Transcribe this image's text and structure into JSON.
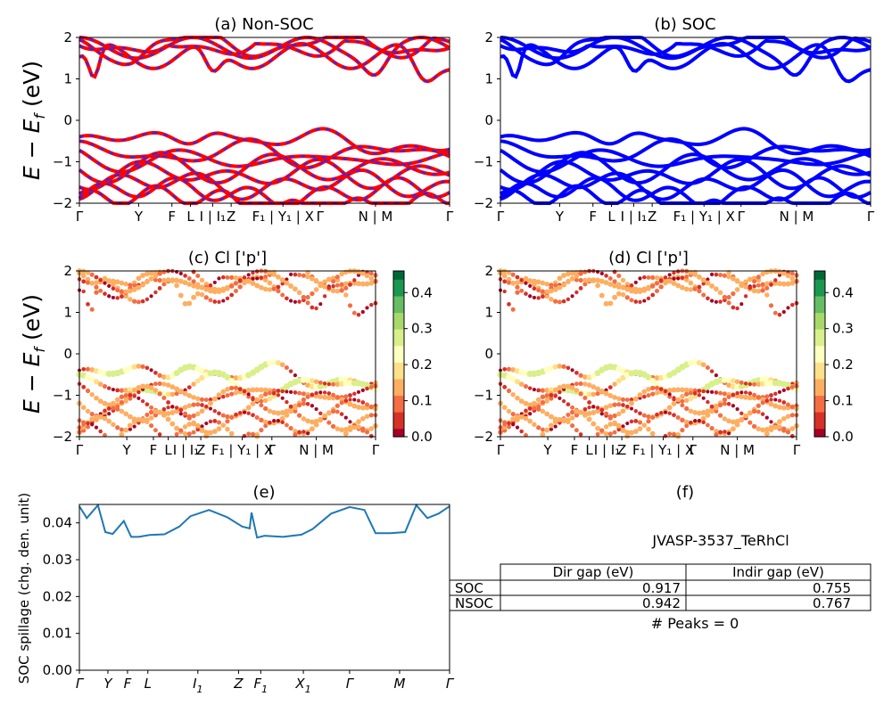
{
  "colors": {
    "nonsoc_line": "#ff0000",
    "nonsoc_dash": "#2a2aff",
    "soc_line": "#0000ff",
    "spillage_line": "#1f77b4",
    "colormap": [
      "#a50026",
      "#d73027",
      "#f46d43",
      "#fdae61",
      "#fee08b",
      "#ffffbf",
      "#d9ef8b",
      "#a6d96a",
      "#66bd63",
      "#1a9850",
      "#006837"
    ]
  },
  "chart_data": [
    {
      "id": "a",
      "type": "line",
      "title": "(a) Non-SOC",
      "ylabel_main": "E − E",
      "ylabel_sub": "f",
      "ylabel_unit": " (eV)",
      "ylim": [
        -2,
        2
      ],
      "yticks": [
        "2",
        "1",
        "0",
        "−1",
        "−2"
      ],
      "xticks": [
        "Γ",
        "Y",
        "F",
        "L",
        "I | I₁",
        "Z",
        "F₁ | Y₁ | X",
        "Γ",
        "N | M",
        "Γ"
      ],
      "kpath_positions": [
        0,
        0.16,
        0.25,
        0.3,
        0.36,
        0.41,
        0.55,
        0.65,
        0.8,
        1.0
      ],
      "band_sets": {
        "conduction": [
          {
            "base": 1.78,
            "amp": 0.95,
            "shape": "upper"
          },
          {
            "base": 1.92,
            "amp": 0.55,
            "shape": "upper2"
          },
          {
            "base": 1.98,
            "amp": 0.35,
            "shape": "upper3"
          }
        ],
        "valence": [
          {
            "base": -0.55,
            "amp": 0.5,
            "shape": "v1"
          },
          {
            "base": -0.85,
            "amp": 0.3,
            "shape": "v2"
          },
          {
            "base": -1.1,
            "amp": 0.3,
            "shape": "v3"
          },
          {
            "base": -1.3,
            "amp": 0.3,
            "shape": "v4"
          },
          {
            "base": -1.55,
            "amp": 0.35,
            "shape": "v5"
          },
          {
            "base": -1.85,
            "amp": 0.35,
            "shape": "v6"
          }
        ]
      }
    },
    {
      "id": "b",
      "type": "line",
      "title": "(b) SOC",
      "ylim": [
        -2,
        2
      ],
      "yticks": [
        "2",
        "1",
        "0",
        "−1",
        "−2"
      ],
      "xticks": [
        "Γ",
        "Y",
        "F",
        "L",
        "I | I₁",
        "Z",
        "F₁ | Y₁ | X",
        "Γ",
        "N | M",
        "Γ"
      ]
    },
    {
      "id": "c",
      "type": "scatter",
      "title": "(c)  Cl ['p']",
      "ylabel_main": "E − E",
      "ylabel_sub": "f",
      "ylabel_unit": " (eV)",
      "ylim": [
        -2,
        2
      ],
      "yticks": [
        "2",
        "1",
        "0",
        "−1",
        "−2"
      ],
      "xticks": [
        "Γ",
        "Y",
        "F",
        "L",
        "I | I₁",
        "Z",
        "F₁ | Y₁ | X",
        "Γ",
        "N | M",
        "Γ"
      ],
      "colorbar_ticks": [
        "0.4",
        "0.3",
        "0.2",
        "0.1",
        "0.0"
      ],
      "colorbar_range": [
        0,
        0.46
      ]
    },
    {
      "id": "d",
      "type": "scatter",
      "title": "(d) Cl ['p']",
      "ylim": [
        -2,
        2
      ],
      "yticks": [
        "2",
        "1",
        "0",
        "−1",
        "−2"
      ],
      "xticks": [
        "Γ",
        "Y",
        "F",
        "L",
        "I | I₁",
        "Z",
        "F₁ | Y₁ | X",
        "Γ",
        "N | M",
        "Γ"
      ],
      "colorbar_ticks": [
        "0.4",
        "0.3",
        "0.2",
        "0.1",
        "0.0"
      ],
      "colorbar_range": [
        0,
        0.46
      ]
    },
    {
      "id": "e",
      "type": "line",
      "title": "(e)",
      "ylabel": "SOC spillage (chg. den. unit)",
      "ylim": [
        0,
        0.045
      ],
      "yticks": [
        "0.04",
        "0.03",
        "0.02",
        "0.01",
        "0.00"
      ],
      "ytick_values": [
        0.04,
        0.03,
        0.02,
        0.01,
        0.0
      ],
      "xticks": [
        "Γ",
        "Y",
        "F",
        "L",
        "I",
        "Z",
        "F",
        "X",
        "Γ",
        "M",
        "Γ"
      ],
      "xtick_subs": [
        "",
        "",
        "",
        "",
        "1",
        "",
        "1",
        "1",
        "",
        "",
        ""
      ],
      "x": [
        0,
        0.02,
        0.05,
        0.07,
        0.09,
        0.12,
        0.14,
        0.16,
        0.19,
        0.23,
        0.27,
        0.3,
        0.35,
        0.4,
        0.44,
        0.46,
        0.465,
        0.48,
        0.5,
        0.55,
        0.6,
        0.63,
        0.68,
        0.73,
        0.77,
        0.8,
        0.84,
        0.88,
        0.91,
        0.94,
        0.97,
        1.0
      ],
      "y": [
        0.0445,
        0.0413,
        0.0448,
        0.0375,
        0.037,
        0.0405,
        0.0362,
        0.0362,
        0.0367,
        0.0369,
        0.039,
        0.0418,
        0.0435,
        0.0415,
        0.039,
        0.0385,
        0.0428,
        0.036,
        0.0365,
        0.0362,
        0.0368,
        0.0383,
        0.0425,
        0.0443,
        0.0435,
        0.0372,
        0.0372,
        0.0375,
        0.0448,
        0.0413,
        0.0425,
        0.0445
      ]
    }
  ],
  "info_panel": {
    "title": "(f)",
    "material_id": "JVASP-3537_TeRhCl",
    "table": {
      "headers": [
        "",
        "Dir gap (eV)",
        "Indir gap (eV)"
      ],
      "rows": [
        [
          "SOC",
          "0.917",
          "0.755"
        ],
        [
          "NSOC",
          "0.942",
          "0.767"
        ]
      ]
    },
    "peaks_text": "# Peaks = 0"
  }
}
